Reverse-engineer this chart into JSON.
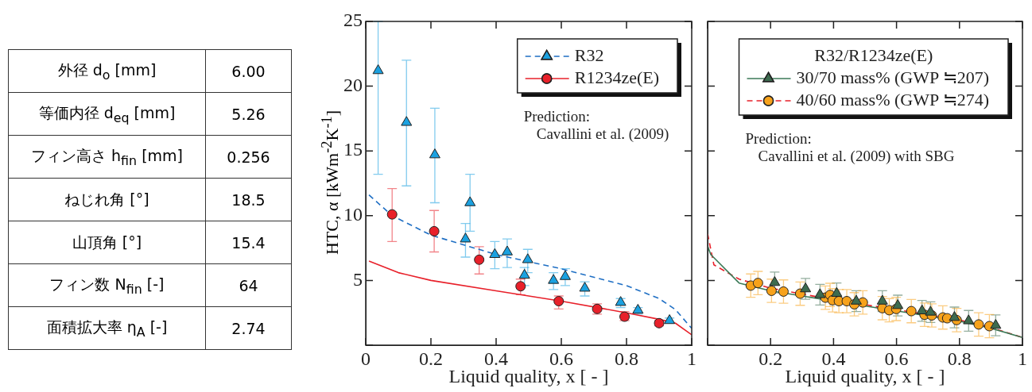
{
  "chart_data": [
    {
      "type": "other",
      "annotations": [
        "外径 d$_{o}$ [mm]",
        "6.00",
        "等価内径 d$_{eq}$ [mm]",
        "5.26",
        "フィン高さ h$_{fin}$ [mm]",
        "0.256",
        "ねじれ角 [°]",
        "18.5",
        "山頂角 [°]",
        "15.4",
        "フィン数 N$_{fin}$ [-]",
        "64",
        "面積拡大率 η$_{A}$ [-]",
        "2.74"
      ]
    },
    {
      "type": "scatter",
      "xlabel": "Liquid quality, x [ - ]",
      "ylabel": "HTC, α [kWm$^{-2}$K$^{-1}$]",
      "xlim": [
        0,
        1
      ],
      "ylim": [
        0,
        25
      ],
      "xticks": [
        0,
        0.2,
        0.4,
        0.6,
        0.8,
        1
      ],
      "yticks": [
        {
          "value": 0,
          "label": null
        },
        5,
        10,
        15,
        20,
        25
      ],
      "legend": "top right",
      "annotations": [
        "Prediction:",
        "Cavallini et al. (2009)"
      ],
      "series": [
        {
          "name": "R32",
          "type": "scatter",
          "marker": "triangle",
          "color": "#1ba1e0",
          "x": [
            0.038,
            0.125,
            0.212,
            0.306,
            0.32,
            0.396,
            0.434,
            0.487,
            0.497,
            0.576,
            0.612,
            0.672,
            0.782,
            0.835,
            0.932
          ],
          "values": [
            21.2,
            17.2,
            14.7,
            8.2,
            11.0,
            7.0,
            7.2,
            5.4,
            6.6,
            5.0,
            5.3,
            4.4,
            3.3,
            2.7,
            1.9
          ],
          "errors": [
            [
              13.2,
              25
            ],
            [
              12.3,
              22.0
            ],
            [
              11.0,
              18.3
            ],
            [
              6.8,
              9.4
            ],
            [
              8.8,
              13.2
            ],
            [
              5.9,
              8.0
            ],
            [
              6.0,
              8.2
            ],
            [
              4.6,
              6.0
            ],
            [
              5.6,
              7.4
            ],
            [
              4.3,
              5.6
            ],
            [
              4.6,
              5.9
            ],
            [
              3.8,
              4.9
            ],
            [
              2.9,
              3.6
            ],
            [
              2.4,
              2.9
            ],
            [
              1.7,
              2.1
            ]
          ]
        },
        {
          "name": "R1234ze(E)",
          "type": "scatter",
          "marker": "circle",
          "color": "#e8202a",
          "x": [
            0.081,
            0.21,
            0.348,
            0.475,
            0.592,
            0.71,
            0.794,
            0.9
          ],
          "values": [
            10.1,
            8.8,
            6.6,
            4.55,
            3.4,
            2.8,
            2.2,
            1.7
          ],
          "errors": [
            [
              8.0,
              12.1
            ],
            [
              7.2,
              10.4
            ],
            [
              5.5,
              7.6
            ],
            [
              3.9,
              5.1
            ],
            [
              2.8,
              3.8
            ],
            [
              2.4,
              3.2
            ],
            [
              1.9,
              2.6
            ],
            [
              1.5,
              1.9
            ]
          ]
        },
        {
          "type": "line",
          "line_style": "dashed",
          "marker": "none",
          "color": "#1f6fc4",
          "x": [
            0.01,
            0.081,
            0.2,
            0.4,
            0.6,
            0.8,
            0.9,
            0.95,
            1.0
          ],
          "values": [
            11.6,
            10.0,
            8.5,
            7.0,
            5.9,
            4.6,
            3.6,
            2.75,
            1.3
          ]
        },
        {
          "type": "line",
          "line_style": "solid",
          "marker": "none",
          "color": "#e8202a",
          "x": [
            0.01,
            0.1,
            0.2,
            0.4,
            0.6,
            0.8,
            0.9,
            0.95,
            1.0
          ],
          "values": [
            6.5,
            5.6,
            5.0,
            4.2,
            3.4,
            2.5,
            2.0,
            1.7,
            0.8
          ]
        }
      ]
    },
    {
      "type": "scatter",
      "xlabel": "Liquid quality, x [ - ]",
      "xlim": [
        0,
        1
      ],
      "ylim": [
        0,
        25
      ],
      "xticks": [
        {
          "value": 0,
          "label": null
        },
        0.2,
        0.4,
        0.6,
        0.8,
        1
      ],
      "yticks": [
        {
          "value": 0,
          "label": null
        },
        5,
        10,
        15,
        20,
        25
      ],
      "tick_labels": "x",
      "legend": "top right",
      "legend_title": "R32/R1234ze(E)",
      "annotations": [
        "Prediction:",
        "Cavallini et al. (2009) with SBG"
      ],
      "series": [
        {
          "name": "30/70 mass% (GWP ≒207)",
          "type": "scatter",
          "marker": "triangle",
          "color": "#3d6b4f",
          "x": [
            0.213,
            0.311,
            0.357,
            0.41,
            0.472,
            0.555,
            0.604,
            0.681,
            0.708,
            0.784,
            0.829,
            0.915
          ],
          "values": [
            4.84,
            4.35,
            3.9,
            4.0,
            3.4,
            3.4,
            3.06,
            2.65,
            2.55,
            2.14,
            1.88,
            1.53
          ],
          "errors": [
            0.8,
            0.8,
            0.8,
            0.8,
            0.8,
            0.8,
            0.8,
            0.8,
            0.8,
            0.8,
            0.8,
            0.8
          ]
        },
        {
          "name": "40/60 mass% (GWP ≒274)",
          "type": "scatter",
          "marker": "circle",
          "color": "#f7a21b",
          "x": [
            0.137,
            0.16,
            0.203,
            0.241,
            0.294,
            0.374,
            0.389,
            0.397,
            0.417,
            0.442,
            0.466,
            0.493,
            0.555,
            0.577,
            0.599,
            0.647,
            0.689,
            0.712,
            0.747,
            0.761,
            0.791,
            0.861,
            0.895
          ],
          "values": [
            4.6,
            4.8,
            4.2,
            4.14,
            3.98,
            3.67,
            3.88,
            3.47,
            3.4,
            3.4,
            3.16,
            3.3,
            2.86,
            2.7,
            2.8,
            2.63,
            2.35,
            2.3,
            2.14,
            2.08,
            1.94,
            1.6,
            1.47
          ],
          "errors": [
            0.9,
            0.9,
            0.9,
            0.9,
            0.9,
            0.9,
            0.9,
            0.9,
            0.9,
            0.9,
            0.9,
            0.9,
            0.9,
            0.9,
            0.9,
            0.9,
            0.9,
            0.9,
            0.9,
            null,
            0.9,
            0.9,
            0.9
          ]
        },
        {
          "type": "line",
          "line_style": "solid",
          "marker": "none",
          "color": "#3b7a57",
          "x": [
            0.0,
            0.01,
            0.1,
            0.2,
            0.4,
            0.6,
            0.8,
            0.9,
            1.0
          ],
          "values": [
            7.65,
            7.0,
            4.8,
            4.2,
            3.4,
            2.65,
            1.85,
            1.3,
            0.6
          ]
        },
        {
          "type": "line",
          "line_style": "dashed",
          "marker": "none",
          "color": "#e8202a",
          "x": [
            0.0,
            0.02,
            0.1,
            0.2,
            0.4,
            0.6,
            0.8,
            0.9,
            1.0
          ],
          "values": [
            8.6,
            6.2,
            5.1,
            4.4,
            3.5,
            2.75,
            1.95,
            1.35,
            0.6
          ]
        }
      ]
    }
  ]
}
